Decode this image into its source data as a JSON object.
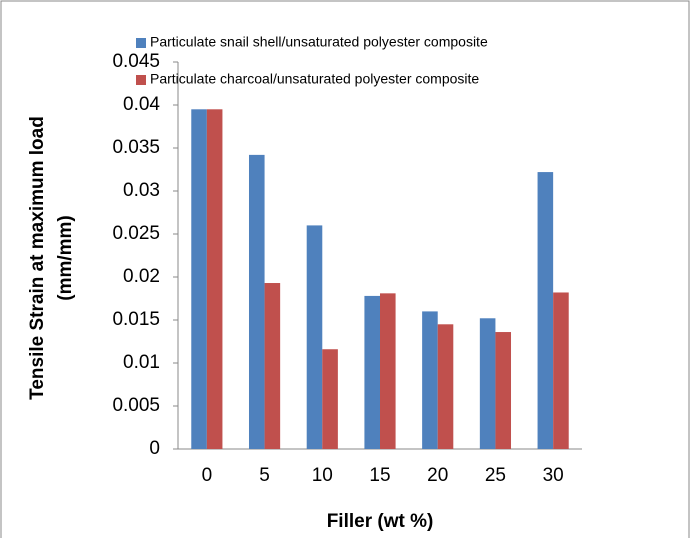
{
  "chart_data": {
    "type": "bar",
    "xlabel": "Filler (wt %)",
    "ylabel": [
      "Tensile Strain  at maximum load",
      "(mm/mm)"
    ],
    "categories": [
      "0",
      "5",
      "10",
      "15",
      "20",
      "25",
      "30"
    ],
    "series": [
      {
        "name": "Particulate snail shell/unsaturated polyester composite",
        "color": "#4f81bd",
        "values": [
          0.0395,
          0.0342,
          0.026,
          0.0178,
          0.016,
          0.0152,
          0.0322
        ]
      },
      {
        "name": "Particulate charcoal/unsaturated polyester composite",
        "color": "#c0504d",
        "values": [
          0.0395,
          0.0193,
          0.0116,
          0.0181,
          0.0145,
          0.0136,
          0.0182
        ]
      }
    ],
    "ylim": [
      0,
      0.045
    ],
    "yticks": [
      0,
      0.005,
      0.01,
      0.015,
      0.02,
      0.025,
      0.03,
      0.035,
      0.04,
      0.045
    ],
    "grid": false,
    "legend": "top"
  }
}
